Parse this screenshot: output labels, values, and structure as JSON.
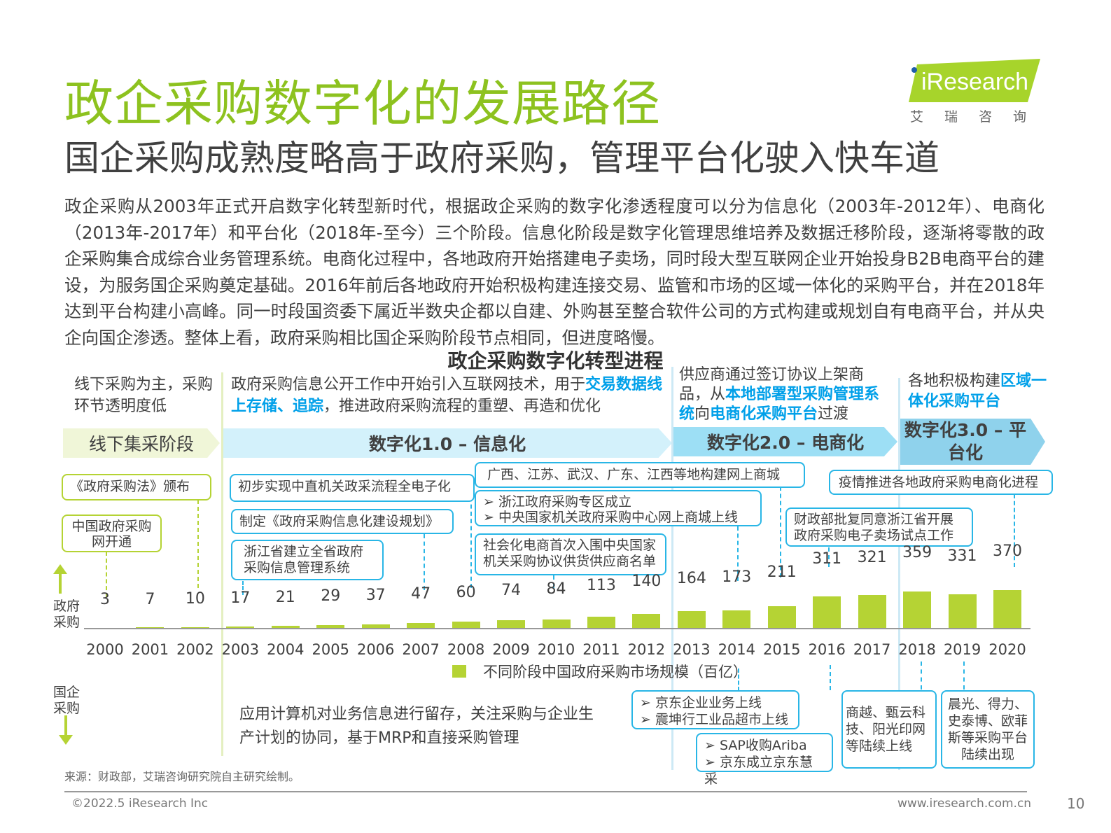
{
  "header": {
    "title": "政企采购数字化的发展路径",
    "subtitle": "国企采购成熟度略高于政府采购，管理平台化驶入快车道",
    "logo_text": "iResearch",
    "logo_sub": "艾瑞咨询"
  },
  "paragraph": "政企采购从2003年正式开启数字化转型新时代，根据政企采购的数字化渗透程度可以分为信息化（2003年-2012年）、电商化（2013年-2017年）和平台化（2018年-至今）三个阶段。信息化阶段是数字化管理思维培养及数据迁移阶段，逐渐将零散的政企采购集合成综合业务管理系统。电商化过程中，各地政府开始搭建电子卖场，同时段大型互联网企业开始投身B2B电商平台的建设，为服务国企采购奠定基础。2016年前后各地政府开始积极构建连接交易、监管和市场的区域一体化的采购平台，并在2018年达到平台构建小高峰。同一时段国资委下属近半数央企都以自建、外购甚至整合软件公司的方式构建或规划自有电商平台，并从央企向国企渗透。整体上看，政府采购相比国企采购阶段节点相同，但进度略慢。",
  "stages": [
    {
      "label": "线下集采阶段",
      "desc": [
        "线下采购为主，采购环节透明度低"
      ]
    },
    {
      "label": "数字化1.0 – 信息化",
      "desc": [
        "政府采购信息公开工作中开始引入互联网技术，用于",
        "交易数据线上存储、追踪",
        "，推进政府采购流程的重塑、再造和优化"
      ]
    },
    {
      "label": "数字化2.0 – 电商化",
      "desc": [
        "供应商通过签订协议上架商品，从",
        "本地部署型采购管理系统",
        "向",
        "电商化采购平台",
        "过渡"
      ]
    },
    {
      "label": "数字化3.0 – 平台化",
      "desc": [
        "各地积极构建",
        "区域一体化采购平台"
      ]
    }
  ],
  "gov_events": [
    "《政府采购法》颁布",
    "中国政府采购网开通",
    "初步实现中直机关政采流程全电子化",
    "制定《政府采购信息化建设规划》",
    "浙江省建立全省政府采购信息管理系统",
    "广西、江苏、武汉、广东、江西等地构建网上商城",
    "浙江政府采购专区成立",
    "中央国家机关政府采购中心网上商城上线",
    "社会化电商首次入围中央国家机关采购协议供货供应商名单",
    "财政部批复同意浙江省开展政府采购电子卖场试点工作",
    "疫情推进各地政府采购电商化进程"
  ],
  "soe_events": [
    "应用计算机对业务信息进行留存，关注采购与企业生产计划的协同，基于MRP和直接采购管理",
    "京东企业业务上线",
    "震坤行工业品超市上线",
    "SAP收购Ariba",
    "京东成立京东慧采",
    "商越、甄云科技、阳光印网等陆续上线",
    "晨光、得力、史泰博、欧菲斯等采购平台陆续出现"
  ],
  "axis_labels": {
    "gov": "政府采购",
    "soe": "国企采购"
  },
  "chart_data": {
    "type": "bar",
    "title": "政企采购数字化转型进程",
    "categories": [
      "2000",
      "2001",
      "2002",
      "2003",
      "2004",
      "2005",
      "2006",
      "2007",
      "2008",
      "2009",
      "2010",
      "2011",
      "2012",
      "2013",
      "2014",
      "2015",
      "2016",
      "2017",
      "2018",
      "2019",
      "2020"
    ],
    "series": [
      {
        "name": "不同阶段中国政府采购市场规模（百亿）",
        "values": [
          3,
          7,
          10,
          17,
          21,
          29,
          37,
          47,
          60,
          74,
          84,
          113,
          140,
          164,
          173,
          211,
          311,
          321,
          359,
          331,
          370
        ]
      }
    ],
    "bar_color": "#b5d334",
    "legend_position": "bottom-center",
    "grid": false
  },
  "footer": {
    "source": "来源：财政部，艾瑞咨询研究院自主研究绘制。",
    "copyright": "©2022.5 iResearch Inc",
    "url": "www.iresearch.com.cn",
    "page": "10"
  },
  "colors": {
    "title_green": "#8dc21f",
    "highlight_blue": "#00a0e9",
    "box_blue": "#29b6e6",
    "bar_green": "#b5d334"
  }
}
